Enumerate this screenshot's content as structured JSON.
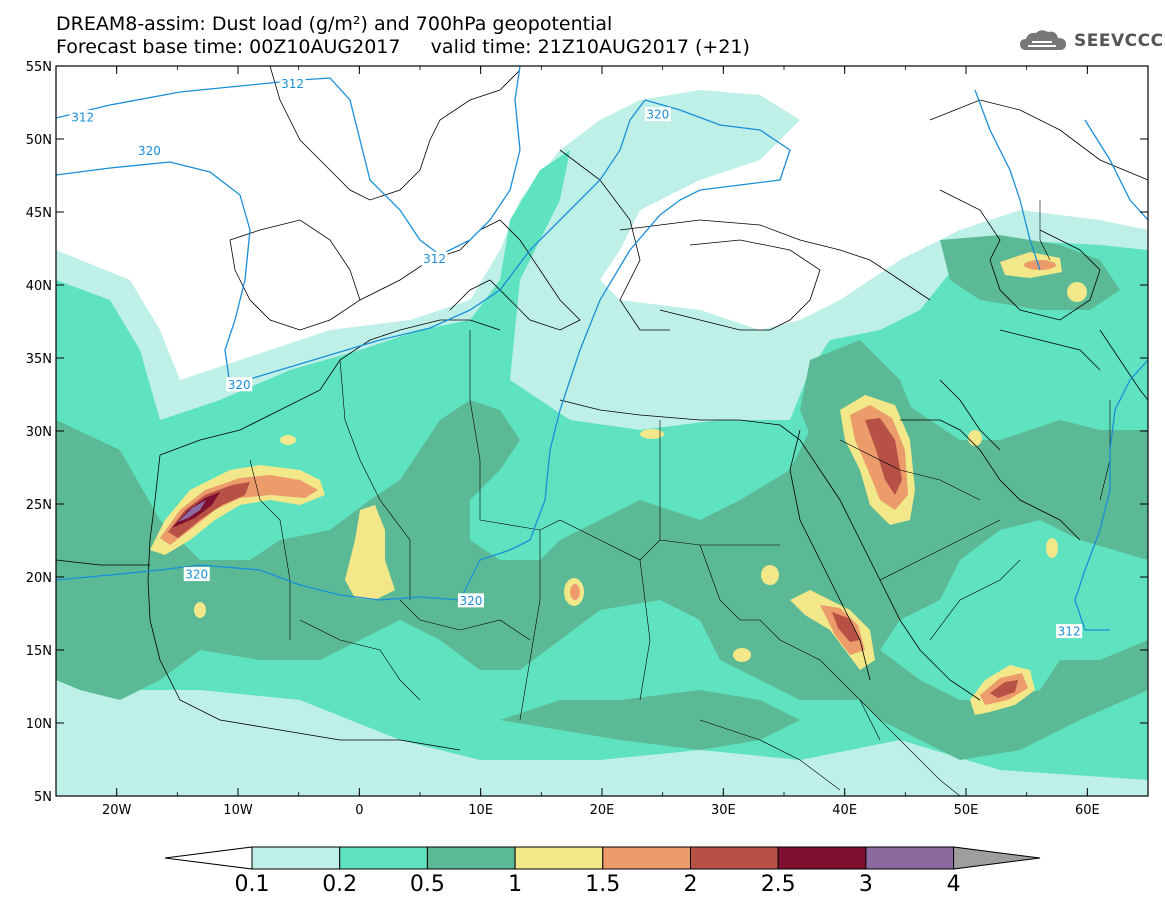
{
  "header": {
    "line1": "DREAM8-assim: Dust load (g/m²) and 700hPa geopotential",
    "line2": "Forecast base time: 00Z10AUG2017     valid time: 21Z10AUG2017 (+21)"
  },
  "logo": {
    "text": "SEEVCCC",
    "icon": "cloud-logo-icon"
  },
  "map": {
    "lon_range": [
      -25,
      65
    ],
    "lat_range": [
      5,
      55
    ],
    "lon_ticks": [
      {
        "value": -20,
        "label": "20W"
      },
      {
        "value": -10,
        "label": "10W"
      },
      {
        "value": 0,
        "label": "0"
      },
      {
        "value": 10,
        "label": "10E"
      },
      {
        "value": 20,
        "label": "20E"
      },
      {
        "value": 30,
        "label": "30E"
      },
      {
        "value": 40,
        "label": "40E"
      },
      {
        "value": 50,
        "label": "50E"
      },
      {
        "value": 60,
        "label": "60E"
      }
    ],
    "lat_ticks": [
      {
        "value": 55,
        "label": "55N"
      },
      {
        "value": 50,
        "label": "50N"
      },
      {
        "value": 45,
        "label": "45N"
      },
      {
        "value": 40,
        "label": "40N"
      },
      {
        "value": 35,
        "label": "35N"
      },
      {
        "value": 30,
        "label": "30N"
      },
      {
        "value": 25,
        "label": "25N"
      },
      {
        "value": 20,
        "label": "20N"
      },
      {
        "value": 15,
        "label": "15N"
      },
      {
        "value": 10,
        "label": "10N"
      },
      {
        "value": 5,
        "label": "5N"
      }
    ],
    "contour_labels": [
      {
        "text": "312",
        "lon": -22.8,
        "lat": 51.5
      },
      {
        "text": "312",
        "lon": -5.5,
        "lat": 53.8
      },
      {
        "text": "320",
        "lon": -17.3,
        "lat": 49.2
      },
      {
        "text": "312",
        "lon": 6.2,
        "lat": 41.8
      },
      {
        "text": "320",
        "lon": -9.9,
        "lat": 33.2
      },
      {
        "text": "320",
        "lon": 24.6,
        "lat": 51.7
      },
      {
        "text": "320",
        "lon": -13.4,
        "lat": 20.2
      },
      {
        "text": "320",
        "lon": 9.2,
        "lat": 18.4
      },
      {
        "text": "312",
        "lon": 58.5,
        "lat": 16.3
      }
    ]
  },
  "colorbar": {
    "labels": [
      "0.1",
      "0.2",
      "0.5",
      "1",
      "1.5",
      "2",
      "2.5",
      "3",
      "4"
    ],
    "colors": [
      "#bff0e8",
      "#5fe2c0",
      "#5cb995",
      "#f2e88a",
      "#ec9b6a",
      "#b75045",
      "#7d0f2f",
      "#8b6aa0"
    ],
    "over_color": "#9e9e9e"
  }
}
